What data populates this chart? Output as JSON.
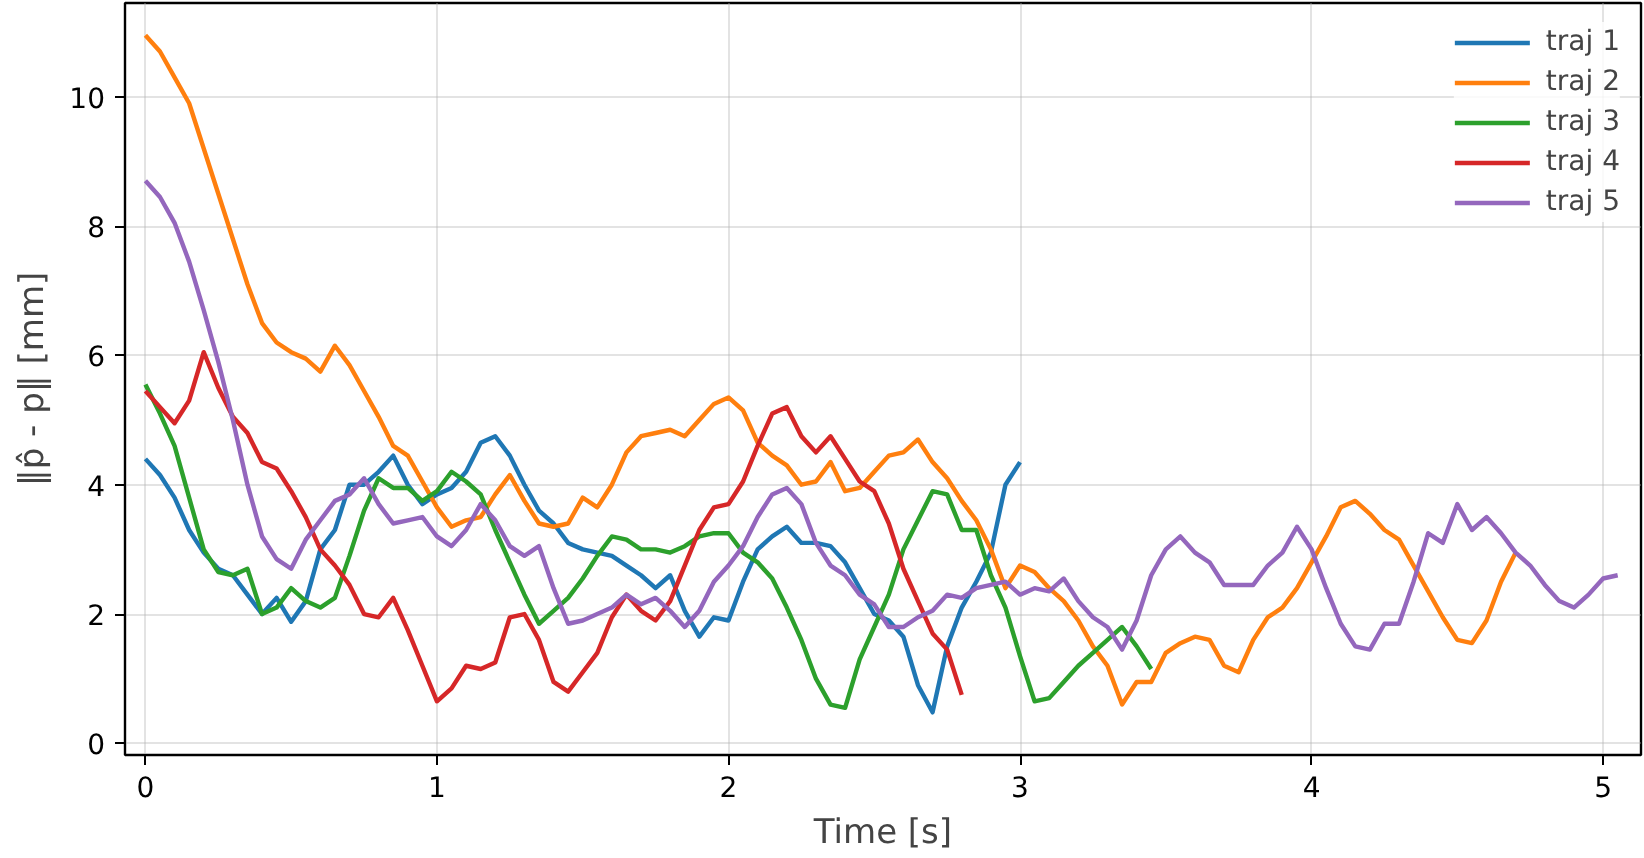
{
  "chart_data": {
    "type": "line",
    "xlabel": "Time [s]",
    "ylabel": "‖p̂ - p‖ [mm]",
    "xlim": [
      -0.07,
      5.13
    ],
    "ylim": [
      -0.18,
      11.45
    ],
    "xticks": [
      0,
      1,
      2,
      3,
      4,
      5
    ],
    "yticks": [
      0,
      2,
      4,
      6,
      8,
      10
    ],
    "grid": true,
    "legend": "top right",
    "line_style": "solid",
    "series": [
      {
        "name": "traj 1",
        "color": "#1f77b4",
        "x": [
          0,
          0.05,
          0.1,
          0.15,
          0.2,
          0.25,
          0.3,
          0.35,
          0.4,
          0.45,
          0.5,
          0.55,
          0.6,
          0.65,
          0.7,
          0.75,
          0.8,
          0.85,
          0.9,
          0.95,
          1.0,
          1.05,
          1.1,
          1.15,
          1.2,
          1.25,
          1.3,
          1.35,
          1.4,
          1.45,
          1.5,
          1.55,
          1.6,
          1.65,
          1.7,
          1.75,
          1.8,
          1.85,
          1.9,
          1.95,
          2.0,
          2.05,
          2.1,
          2.15,
          2.2,
          2.25,
          2.3,
          2.35,
          2.4,
          2.45,
          2.5,
          2.55,
          2.6,
          2.65,
          2.7,
          2.75,
          2.8,
          2.85,
          2.9,
          2.95,
          3.0
        ],
        "values": [
          4.4,
          4.15,
          3.8,
          3.3,
          2.95,
          2.7,
          2.6,
          2.3,
          2.0,
          2.25,
          1.88,
          2.2,
          3.0,
          3.3,
          4.0,
          4.0,
          4.2,
          4.45,
          4.0,
          3.7,
          3.85,
          3.95,
          4.2,
          4.65,
          4.75,
          4.45,
          4.0,
          3.6,
          3.4,
          3.1,
          3.0,
          2.95,
          2.9,
          2.75,
          2.6,
          2.4,
          2.6,
          2.05,
          1.65,
          1.95,
          1.9,
          2.5,
          3.0,
          3.2,
          3.35,
          3.1,
          3.1,
          3.05,
          2.8,
          2.4,
          2.0,
          1.9,
          1.65,
          0.9,
          0.48,
          1.5,
          2.1,
          2.5,
          2.95,
          4.0,
          4.35
        ]
      },
      {
        "name": "traj 2",
        "color": "#ff7f0e",
        "x": [
          0,
          0.05,
          0.1,
          0.15,
          0.2,
          0.25,
          0.3,
          0.35,
          0.4,
          0.45,
          0.5,
          0.55,
          0.6,
          0.65,
          0.7,
          0.75,
          0.8,
          0.85,
          0.9,
          0.95,
          1.0,
          1.05,
          1.1,
          1.15,
          1.2,
          1.25,
          1.3,
          1.35,
          1.4,
          1.45,
          1.5,
          1.55,
          1.6,
          1.65,
          1.7,
          1.75,
          1.8,
          1.85,
          1.9,
          1.95,
          2.0,
          2.05,
          2.1,
          2.15,
          2.2,
          2.25,
          2.3,
          2.35,
          2.4,
          2.45,
          2.5,
          2.55,
          2.6,
          2.65,
          2.7,
          2.75,
          2.8,
          2.85,
          2.9,
          2.95,
          3.0,
          3.05,
          3.1,
          3.15,
          3.2,
          3.25,
          3.3,
          3.35,
          3.4,
          3.45,
          3.5,
          3.55,
          3.6,
          3.65,
          3.7,
          3.75,
          3.8,
          3.85,
          3.9,
          3.95,
          4.0,
          4.05,
          4.1,
          4.15,
          4.2,
          4.25,
          4.3,
          4.35,
          4.4,
          4.45,
          4.5,
          4.55,
          4.6,
          4.65,
          4.7
        ],
        "values": [
          10.95,
          10.7,
          10.3,
          9.9,
          9.2,
          8.5,
          7.8,
          7.1,
          6.5,
          6.2,
          6.05,
          5.95,
          5.75,
          6.15,
          5.85,
          5.45,
          5.05,
          4.6,
          4.45,
          4.05,
          3.65,
          3.35,
          3.45,
          3.5,
          3.85,
          4.15,
          3.75,
          3.4,
          3.35,
          3.4,
          3.8,
          3.65,
          4.0,
          4.5,
          4.75,
          4.8,
          4.85,
          4.75,
          5.0,
          5.25,
          5.35,
          5.15,
          4.65,
          4.45,
          4.3,
          4.0,
          4.05,
          4.35,
          3.9,
          3.95,
          4.2,
          4.45,
          4.5,
          4.7,
          4.35,
          4.1,
          3.75,
          3.45,
          3.0,
          2.4,
          2.75,
          2.65,
          2.4,
          2.2,
          1.9,
          1.5,
          1.2,
          0.6,
          0.95,
          0.95,
          1.4,
          1.55,
          1.65,
          1.6,
          1.2,
          1.1,
          1.6,
          1.95,
          2.1,
          2.4,
          2.8,
          3.2,
          3.65,
          3.75,
          3.55,
          3.3,
          3.15,
          2.75,
          2.35,
          1.95,
          1.6,
          1.55,
          1.9,
          2.5,
          2.95
        ]
      },
      {
        "name": "traj 3",
        "color": "#2ca02c",
        "x": [
          0,
          0.05,
          0.1,
          0.15,
          0.2,
          0.25,
          0.3,
          0.35,
          0.4,
          0.45,
          0.5,
          0.55,
          0.6,
          0.65,
          0.7,
          0.75,
          0.8,
          0.85,
          0.9,
          0.95,
          1.0,
          1.05,
          1.1,
          1.15,
          1.2,
          1.25,
          1.3,
          1.35,
          1.4,
          1.45,
          1.5,
          1.55,
          1.6,
          1.65,
          1.7,
          1.75,
          1.8,
          1.85,
          1.9,
          1.95,
          2.0,
          2.05,
          2.1,
          2.15,
          2.2,
          2.25,
          2.3,
          2.35,
          2.4,
          2.45,
          2.5,
          2.55,
          2.6,
          2.65,
          2.7,
          2.75,
          2.8,
          2.85,
          2.9,
          2.95,
          3.0,
          3.05,
          3.1,
          3.15,
          3.2,
          3.25,
          3.3,
          3.35,
          3.4,
          3.45
        ],
        "values": [
          5.55,
          5.1,
          4.6,
          3.8,
          3.0,
          2.65,
          2.6,
          2.7,
          2.0,
          2.1,
          2.4,
          2.2,
          2.1,
          2.25,
          2.9,
          3.6,
          4.1,
          3.95,
          3.95,
          3.75,
          3.9,
          4.2,
          4.05,
          3.85,
          3.3,
          2.8,
          2.3,
          1.85,
          2.05,
          2.25,
          2.55,
          2.9,
          3.2,
          3.15,
          3.0,
          3.0,
          2.95,
          3.05,
          3.2,
          3.25,
          3.25,
          2.95,
          2.8,
          2.55,
          2.1,
          1.6,
          1.0,
          0.6,
          0.55,
          1.3,
          1.8,
          2.3,
          3.0,
          3.45,
          3.9,
          3.85,
          3.3,
          3.3,
          2.6,
          2.1,
          1.35,
          0.65,
          0.7,
          0.95,
          1.2,
          1.4,
          1.6,
          1.8,
          1.5,
          1.15
        ]
      },
      {
        "name": "traj 4",
        "color": "#d62728",
        "x": [
          0,
          0.05,
          0.1,
          0.15,
          0.2,
          0.25,
          0.3,
          0.35,
          0.4,
          0.45,
          0.5,
          0.55,
          0.6,
          0.65,
          0.7,
          0.75,
          0.8,
          0.85,
          0.9,
          0.95,
          1.0,
          1.05,
          1.1,
          1.15,
          1.2,
          1.25,
          1.3,
          1.35,
          1.4,
          1.45,
          1.5,
          1.55,
          1.6,
          1.65,
          1.7,
          1.75,
          1.8,
          1.85,
          1.9,
          1.95,
          2.0,
          2.05,
          2.1,
          2.15,
          2.2,
          2.25,
          2.3,
          2.35,
          2.4,
          2.45,
          2.5,
          2.55,
          2.6,
          2.65,
          2.7,
          2.75,
          2.8
        ],
        "values": [
          5.45,
          5.2,
          4.95,
          5.3,
          6.05,
          5.5,
          5.05,
          4.8,
          4.35,
          4.25,
          3.9,
          3.5,
          3.0,
          2.75,
          2.45,
          2.0,
          1.95,
          2.25,
          1.75,
          1.2,
          0.65,
          0.85,
          1.2,
          1.15,
          1.25,
          1.95,
          2.0,
          1.6,
          0.95,
          0.8,
          1.1,
          1.4,
          1.95,
          2.3,
          2.05,
          1.9,
          2.2,
          2.75,
          3.3,
          3.65,
          3.7,
          4.05,
          4.6,
          5.1,
          5.2,
          4.75,
          4.5,
          4.75,
          4.4,
          4.05,
          3.9,
          3.4,
          2.7,
          2.2,
          1.7,
          1.45,
          0.75
        ]
      },
      {
        "name": "traj 5",
        "color": "#9467bd",
        "x": [
          0,
          0.05,
          0.1,
          0.15,
          0.2,
          0.25,
          0.3,
          0.35,
          0.4,
          0.45,
          0.5,
          0.55,
          0.6,
          0.65,
          0.7,
          0.75,
          0.8,
          0.85,
          0.9,
          0.95,
          1.0,
          1.05,
          1.1,
          1.15,
          1.2,
          1.25,
          1.3,
          1.35,
          1.4,
          1.45,
          1.5,
          1.55,
          1.6,
          1.65,
          1.7,
          1.75,
          1.8,
          1.85,
          1.9,
          1.95,
          2.0,
          2.05,
          2.1,
          2.15,
          2.2,
          2.25,
          2.3,
          2.35,
          2.4,
          2.45,
          2.5,
          2.55,
          2.6,
          2.65,
          2.7,
          2.75,
          2.8,
          2.85,
          2.9,
          2.95,
          3.0,
          3.05,
          3.1,
          3.15,
          3.2,
          3.25,
          3.3,
          3.35,
          3.4,
          3.45,
          3.5,
          3.55,
          3.6,
          3.65,
          3.7,
          3.75,
          3.8,
          3.85,
          3.9,
          3.95,
          4.0,
          4.05,
          4.1,
          4.15,
          4.2,
          4.25,
          4.3,
          4.35,
          4.4,
          4.45,
          4.5,
          4.55,
          4.6,
          4.65,
          4.7,
          4.75,
          4.8,
          4.85,
          4.9,
          4.95,
          5.0,
          5.05
        ],
        "values": [
          8.7,
          8.45,
          8.05,
          7.45,
          6.7,
          5.9,
          5.0,
          4.0,
          3.2,
          2.85,
          2.7,
          3.15,
          3.45,
          3.75,
          3.85,
          4.1,
          3.7,
          3.4,
          3.45,
          3.5,
          3.2,
          3.05,
          3.3,
          3.7,
          3.45,
          3.05,
          2.9,
          3.05,
          2.4,
          1.85,
          1.9,
          2.0,
          2.1,
          2.3,
          2.15,
          2.25,
          2.05,
          1.8,
          2.05,
          2.5,
          2.75,
          3.05,
          3.5,
          3.85,
          3.95,
          3.7,
          3.1,
          2.75,
          2.6,
          2.3,
          2.15,
          1.8,
          1.8,
          1.95,
          2.05,
          2.3,
          2.25,
          2.4,
          2.45,
          2.5,
          2.3,
          2.4,
          2.35,
          2.55,
          2.2,
          1.95,
          1.8,
          1.45,
          1.9,
          2.6,
          3.0,
          3.2,
          2.95,
          2.8,
          2.45,
          2.45,
          2.45,
          2.75,
          2.95,
          3.35,
          3.0,
          2.4,
          1.85,
          1.5,
          1.45,
          1.85,
          1.85,
          2.5,
          3.25,
          3.1,
          3.7,
          3.3,
          3.5,
          3.25,
          2.95,
          2.75,
          2.45,
          2.2,
          2.1,
          2.3,
          2.55,
          2.6
        ]
      }
    ]
  }
}
